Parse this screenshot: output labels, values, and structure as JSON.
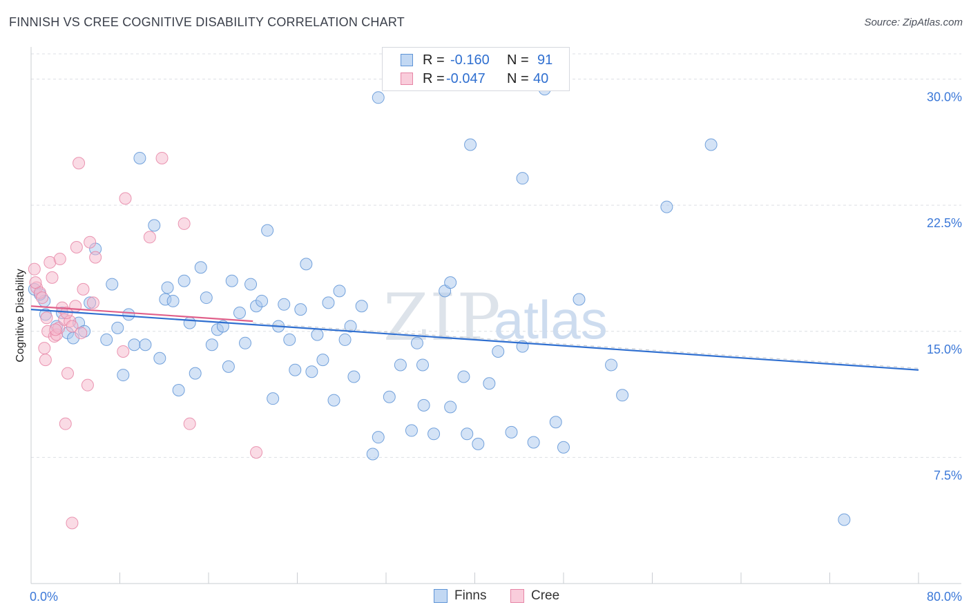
{
  "header": {
    "title": "FINNISH VS CREE COGNITIVE DISABILITY CORRELATION CHART",
    "source": "Source: ZipAtlas.com"
  },
  "watermark": {
    "zip": "ZIP",
    "atlas": "atlas"
  },
  "legend": {
    "rows": [
      {
        "r_label": "R =",
        "r_value": "-0.160",
        "n_label": "N =",
        "n_value": "91"
      },
      {
        "r_label": "R =",
        "r_value": "-0.047",
        "n_label": "N =",
        "n_value": "40"
      }
    ],
    "bottom": [
      {
        "label": "Finns"
      },
      {
        "label": "Cree"
      }
    ]
  },
  "colors": {
    "finns_fill": "#a9c8ee",
    "finns_stroke": "#5d93d6",
    "finns_line": "#2f6fd0",
    "cree_fill": "#f5b8cc",
    "cree_stroke": "#e684a5",
    "cree_line": "#e0608a",
    "axis_label": "#3b78d8",
    "grid": "#dcdfe4"
  },
  "chart_data": {
    "type": "scatter",
    "title": "FINNISH VS CREE COGNITIVE DISABILITY CORRELATION CHART",
    "xlabel": "",
    "ylabel": "Cognitive Disability",
    "xlim": [
      0,
      80
    ],
    "ylim": [
      0,
      31.5
    ],
    "x_tick_labels": [
      "0.0%",
      "80.0%"
    ],
    "y_ticks": [
      7.5,
      15.0,
      22.5,
      30.0
    ],
    "y_tick_labels": [
      "7.5%",
      "15.0%",
      "22.5%",
      "30.0%"
    ],
    "grid": true,
    "series": [
      {
        "name": "Finns",
        "r": -0.16,
        "n": 91,
        "trend": {
          "x0": 0,
          "y0": 16.3,
          "x1": 80,
          "y1": 12.7
        },
        "trend_dashed": {
          "x0": 20,
          "y0": 15.5,
          "x1": 80,
          "y1": 12.8
        },
        "points": [
          [
            0.3,
            17.5
          ],
          [
            1.2,
            16.8
          ],
          [
            1.3,
            16.0
          ],
          [
            2.3,
            15.3
          ],
          [
            2.8,
            16.1
          ],
          [
            3.3,
            14.9
          ],
          [
            3.8,
            14.6
          ],
          [
            4.3,
            15.5
          ],
          [
            4.8,
            15.0
          ],
          [
            5.3,
            16.7
          ],
          [
            5.8,
            19.9
          ],
          [
            6.8,
            14.5
          ],
          [
            7.3,
            17.8
          ],
          [
            7.8,
            15.2
          ],
          [
            8.3,
            12.4
          ],
          [
            8.8,
            16.0
          ],
          [
            9.3,
            14.2
          ],
          [
            9.8,
            25.3
          ],
          [
            10.3,
            14.2
          ],
          [
            11.1,
            21.3
          ],
          [
            11.6,
            13.4
          ],
          [
            12.1,
            16.9
          ],
          [
            12.3,
            17.6
          ],
          [
            12.8,
            16.8
          ],
          [
            13.3,
            11.5
          ],
          [
            13.8,
            18.0
          ],
          [
            14.3,
            15.5
          ],
          [
            14.8,
            12.5
          ],
          [
            15.3,
            18.8
          ],
          [
            15.8,
            17.0
          ],
          [
            16.3,
            14.2
          ],
          [
            16.8,
            15.1
          ],
          [
            17.3,
            15.3
          ],
          [
            17.8,
            12.9
          ],
          [
            18.1,
            18.0
          ],
          [
            18.8,
            16.1
          ],
          [
            19.3,
            14.3
          ],
          [
            19.8,
            17.8
          ],
          [
            20.3,
            16.5
          ],
          [
            20.8,
            16.8
          ],
          [
            21.3,
            21.0
          ],
          [
            21.8,
            11.0
          ],
          [
            22.3,
            15.3
          ],
          [
            22.8,
            16.6
          ],
          [
            23.3,
            14.5
          ],
          [
            23.8,
            12.7
          ],
          [
            24.3,
            16.3
          ],
          [
            24.8,
            19.0
          ],
          [
            25.3,
            12.6
          ],
          [
            25.8,
            14.8
          ],
          [
            26.3,
            13.3
          ],
          [
            26.8,
            16.7
          ],
          [
            27.3,
            10.9
          ],
          [
            27.8,
            17.4
          ],
          [
            28.3,
            14.5
          ],
          [
            28.8,
            15.3
          ],
          [
            29.1,
            12.3
          ],
          [
            29.8,
            16.5
          ],
          [
            30.8,
            7.7
          ],
          [
            31.3,
            28.9
          ],
          [
            31.3,
            8.7
          ],
          [
            32.3,
            11.1
          ],
          [
            33.3,
            13.0
          ],
          [
            34.3,
            9.1
          ],
          [
            34.8,
            14.3
          ],
          [
            35.3,
            13.0
          ],
          [
            35.4,
            10.6
          ],
          [
            36.3,
            8.9
          ],
          [
            37.3,
            17.4
          ],
          [
            37.8,
            17.9
          ],
          [
            37.8,
            10.5
          ],
          [
            39.0,
            12.3
          ],
          [
            39.3,
            8.9
          ],
          [
            39.6,
            26.1
          ],
          [
            40.3,
            8.3
          ],
          [
            41.3,
            11.9
          ],
          [
            42.1,
            13.8
          ],
          [
            43.3,
            9.0
          ],
          [
            44.3,
            24.1
          ],
          [
            44.3,
            14.1
          ],
          [
            45.3,
            8.4
          ],
          [
            46.3,
            29.4
          ],
          [
            47.3,
            9.6
          ],
          [
            48.0,
            8.1
          ],
          [
            49.4,
            16.9
          ],
          [
            52.3,
            13.0
          ],
          [
            53.3,
            11.2
          ],
          [
            57.3,
            22.4
          ],
          [
            61.3,
            26.1
          ],
          [
            73.3,
            3.8
          ],
          [
            0.8,
            17.2
          ]
        ]
      },
      {
        "name": "Cree",
        "r": -0.047,
        "n": 40,
        "trend": {
          "x0": 0,
          "y0": 16.5,
          "x1": 20,
          "y1": 15.6
        },
        "points": [
          [
            0.3,
            18.7
          ],
          [
            0.5,
            17.6
          ],
          [
            0.8,
            17.3
          ],
          [
            1.0,
            17.0
          ],
          [
            1.2,
            14.0
          ],
          [
            1.3,
            13.3
          ],
          [
            1.5,
            15.0
          ],
          [
            1.7,
            19.1
          ],
          [
            1.9,
            18.2
          ],
          [
            2.1,
            14.7
          ],
          [
            2.3,
            14.8
          ],
          [
            2.5,
            15.2
          ],
          [
            2.6,
            19.3
          ],
          [
            2.8,
            16.4
          ],
          [
            3.0,
            15.7
          ],
          [
            3.1,
            9.5
          ],
          [
            3.3,
            12.5
          ],
          [
            3.5,
            15.6
          ],
          [
            3.7,
            15.3
          ],
          [
            3.7,
            3.6
          ],
          [
            4.0,
            16.5
          ],
          [
            4.1,
            20.0
          ],
          [
            4.3,
            25.0
          ],
          [
            4.5,
            14.9
          ],
          [
            4.7,
            17.5
          ],
          [
            5.1,
            11.8
          ],
          [
            5.3,
            20.3
          ],
          [
            5.6,
            16.7
          ],
          [
            5.8,
            19.4
          ],
          [
            8.3,
            13.8
          ],
          [
            8.5,
            22.9
          ],
          [
            10.7,
            20.6
          ],
          [
            11.8,
            25.3
          ],
          [
            13.8,
            21.4
          ],
          [
            14.3,
            9.5
          ],
          [
            20.3,
            7.8
          ],
          [
            0.4,
            17.9
          ],
          [
            2.2,
            15.1
          ],
          [
            1.4,
            15.8
          ],
          [
            3.2,
            16.1
          ]
        ]
      }
    ]
  }
}
